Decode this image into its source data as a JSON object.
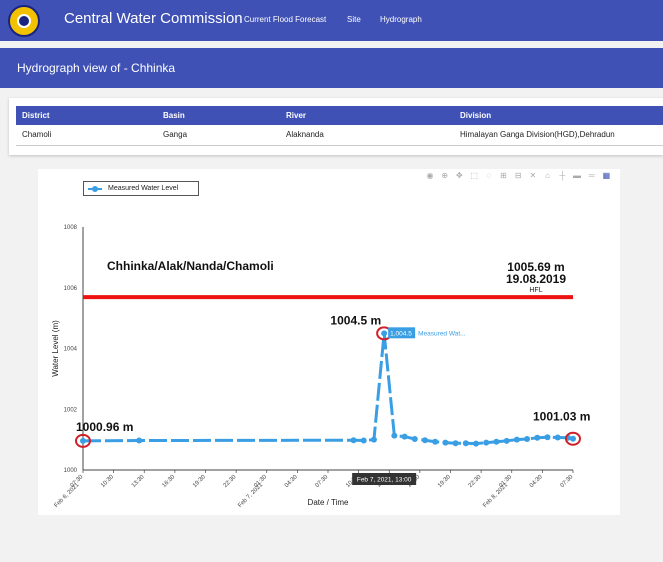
{
  "navbar": {
    "brand": "Central Water Commission",
    "links": [
      "Current Flood Forecast",
      "Site",
      "Hydrograph"
    ]
  },
  "subheader": {
    "title": "Hydrograph view of - Chhinka"
  },
  "info": {
    "headers": [
      "District",
      "Basin",
      "River",
      "Division"
    ],
    "values": [
      "Chamoli",
      "Ganga",
      "Alaknanda",
      "Himalayan Ganga Division(HGD),Dehradun"
    ]
  },
  "modebar_icons": [
    "camera-icon",
    "zoom-icon",
    "pan-icon",
    "box-select-icon",
    "lasso-icon",
    "zoom-in-icon",
    "zoom-out-icon",
    "autoscale-icon",
    "reset-axes-icon",
    "spike-lines-icon",
    "hover-closest-icon",
    "hover-compare-icon",
    "plotly-logo-icon"
  ],
  "colors": {
    "header": "#3f51b5",
    "series": "#3a9ee4",
    "hfl": "#ee1111",
    "annotation_circle": "#d0202a"
  },
  "chart_data": {
    "type": "line",
    "title": "Chhinka/Alak/Nanda/Chamoli",
    "xlabel": "Date / Time",
    "ylabel": "Water Level (m)",
    "ylim": [
      1000,
      1008
    ],
    "yticks": [
      "1000",
      "1002",
      "1004",
      "1006",
      "1008"
    ],
    "xticks": [
      [
        "07:30",
        "Feb 6, 2021"
      ],
      [
        "10:30",
        ""
      ],
      [
        "13:30",
        ""
      ],
      [
        "16:30",
        ""
      ],
      [
        "19:30",
        ""
      ],
      [
        "22:30",
        ""
      ],
      [
        "01:30",
        "Feb 7, 2021"
      ],
      [
        "04:30",
        ""
      ],
      [
        "07:30",
        ""
      ],
      [
        "10:30",
        ""
      ],
      [
        "13:30",
        ""
      ],
      [
        "16:30",
        ""
      ],
      [
        "19:30",
        ""
      ],
      [
        "22:30",
        ""
      ],
      [
        "01:30",
        "Feb 8, 2021"
      ],
      [
        "04:30",
        ""
      ],
      [
        "07:30",
        ""
      ]
    ],
    "xrange": [
      "2021-02-06 07:30",
      "2021-02-08 07:30"
    ],
    "grid": false,
    "legend_position": "top-left",
    "series": [
      {
        "name": "Measured Water Level",
        "x": [
          "2021-02-06 07:30",
          "2021-02-06 13:00",
          "2021-02-07 10:00",
          "2021-02-07 11:00",
          "2021-02-07 12:00",
          "2021-02-07 13:00",
          "2021-02-07 14:00",
          "2021-02-07 15:00",
          "2021-02-07 16:00",
          "2021-02-07 17:00",
          "2021-02-07 18:00",
          "2021-02-07 19:00",
          "2021-02-07 20:00",
          "2021-02-07 21:00",
          "2021-02-07 22:00",
          "2021-02-07 23:00",
          "2021-02-08 00:00",
          "2021-02-08 01:00",
          "2021-02-08 02:00",
          "2021-02-08 03:00",
          "2021-02-08 04:00",
          "2021-02-08 05:00",
          "2021-02-08 06:00",
          "2021-02-08 07:00",
          "2021-02-08 07:30"
        ],
        "y": [
          1000.96,
          1000.97,
          1000.98,
          1000.97,
          1001.0,
          1004.5,
          1001.13,
          1001.1,
          1001.02,
          1000.98,
          1000.93,
          1000.9,
          1000.88,
          1000.88,
          1000.87,
          1000.9,
          1000.93,
          1000.96,
          1001.0,
          1001.02,
          1001.06,
          1001.08,
          1001.07,
          1001.06,
          1001.03
        ]
      }
    ],
    "hfl": {
      "value": 1005.69,
      "label": "HFL",
      "value_text": "1005.69 m",
      "date_text": "19.08.2019"
    },
    "annotations": [
      {
        "text": "1000.96 m",
        "x": "2021-02-06 07:30",
        "y": 1000.96
      },
      {
        "text": "1004.5 m",
        "x": "2021-02-07 13:00",
        "y": 1004.5
      },
      {
        "text": "1001.03 m",
        "x": "2021-02-08 07:30",
        "y": 1001.03
      }
    ],
    "hover": {
      "x_label": "Feb 7, 2021, 13:00",
      "y_label": "1,004.5",
      "series_label": "Measured Wat..."
    }
  }
}
